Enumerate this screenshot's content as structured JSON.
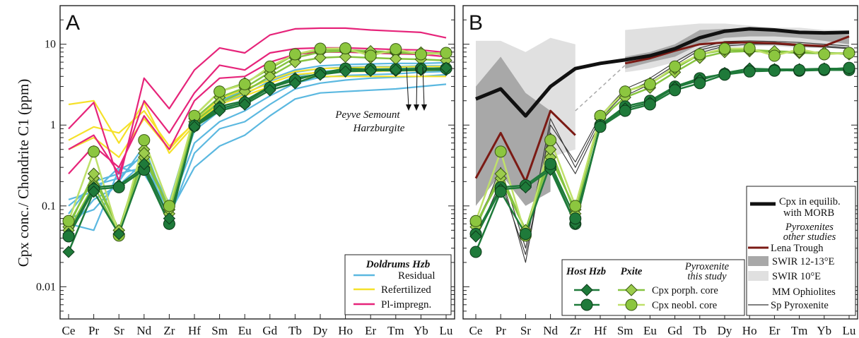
{
  "colors": {
    "residual": "#5bb8e0",
    "refertilized": "#f5e12a",
    "plimpregn": "#e6247a",
    "morb": "#111111",
    "lena": "#7b1a14",
    "swir1213": "#a8a8a8",
    "swir10": "#e0e0e0",
    "mm": "#333333",
    "host": "#1f7a3a",
    "pxite": "#86c440",
    "pxite_light": "#bfe06a"
  },
  "shared": {
    "ylabel": "Cpx conc./ Chondrite C1 (ppm)",
    "categories": [
      "Ce",
      "Pr",
      "Sr",
      "Nd",
      "Zr",
      "Hf",
      "Sm",
      "Eu",
      "Gd",
      "Tb",
      "Dy",
      "Ho",
      "Er",
      "Tm",
      "Yb",
      "Lu"
    ],
    "ytick_labels": [
      "0.01",
      "0.1",
      "1",
      "10"
    ]
  },
  "panelA": {
    "letter": "A",
    "annotation_line1": "Peyve Semount",
    "annotation_line2": "Harzburgite",
    "legend": {
      "title": "Doldrums Hzb",
      "items": [
        "Residual",
        "Refertilized",
        "Pl-impregn."
      ]
    }
  },
  "panelB": {
    "letter": "B",
    "legend_morb_line1": "Cpx in equilib.",
    "legend_morb_line2": "with MORB",
    "legend_other_title_line1": "Pyroxenites",
    "legend_other_title_line2": "other studies",
    "legend_lena": "Lena Trough",
    "legend_swir1213": "SWIR 12-13°E",
    "legend_swir10": "SWIR 10°E",
    "legend_mm_line1": "MM Ophiolites",
    "legend_mm_line2": "Sp Pyroxenite",
    "legend2": {
      "host_title": "Host Hzb",
      "pxite_title": "Pxite",
      "study_title_line1": "Pyroxenite",
      "study_title_line2": "this study",
      "porph_label": "Cpx porph. core",
      "neobl_label": "Cpx neobl. core"
    }
  },
  "chart_data": [
    {
      "type": "line",
      "panel": "A",
      "ylabel": "Cpx conc./ Chondrite C1 (ppm)",
      "yscale": "log",
      "ylim": [
        0.004,
        30
      ],
      "categories": [
        "Ce",
        "Pr",
        "Sr",
        "Nd",
        "Zr",
        "Hf",
        "Sm",
        "Eu",
        "Gd",
        "Tb",
        "Dy",
        "Ho",
        "Er",
        "Tm",
        "Yb",
        "Lu"
      ],
      "series": [
        {
          "group": "Residual",
          "values": [
            0.12,
            0.15,
            0.3,
            0.25,
            0.08,
            0.3,
            0.55,
            0.75,
            1.3,
            2.1,
            2.5,
            2.6,
            2.7,
            2.8,
            3.0,
            3.2
          ]
        },
        {
          "group": "Residual",
          "values": [
            0.06,
            0.05,
            0.28,
            0.4,
            0.07,
            0.45,
            0.9,
            1.1,
            1.8,
            2.8,
            3.3,
            3.6,
            3.8,
            3.9,
            4.0,
            4.2
          ]
        },
        {
          "group": "Residual",
          "values": [
            0.08,
            0.2,
            0.25,
            0.3,
            0.09,
            0.6,
            1.1,
            1.5,
            2.3,
            3.3,
            3.9,
            4.1,
            4.2,
            4.3,
            4.5,
            4.6
          ]
        },
        {
          "group": "Residual",
          "values": [
            0.1,
            0.18,
            0.22,
            0.45,
            0.1,
            0.85,
            1.5,
            2.0,
            2.9,
            4.0,
            4.6,
            4.8,
            4.9,
            5.0,
            5.1,
            5.1
          ]
        },
        {
          "group": "Residual",
          "values": [
            0.07,
            0.09,
            0.2,
            0.55,
            0.08,
            1.0,
            1.8,
            2.4,
            3.5,
            4.5,
            5.0,
            5.2,
            5.3,
            5.3,
            5.4,
            5.4
          ]
        },
        {
          "group": "Residual",
          "values": [
            0.05,
            0.12,
            0.18,
            0.35,
            0.11,
            1.2,
            2.0,
            2.7,
            3.7,
            4.8,
            5.4,
            5.6,
            5.7,
            5.8,
            5.8,
            5.9
          ]
        },
        {
          "group": "Refertilized",
          "values": [
            1.8,
            2.0,
            0.6,
            1.9,
            0.45,
            1.0,
            1.8,
            2.3,
            3.0,
            3.8,
            4.0,
            4.0,
            4.0,
            4.0,
            4.0,
            4.0
          ]
        },
        {
          "group": "Refertilized",
          "values": [
            0.65,
            0.95,
            0.8,
            1.5,
            0.55,
            1.05,
            1.9,
            2.5,
            3.3,
            4.2,
            4.5,
            4.6,
            4.6,
            4.7,
            4.7,
            4.8
          ]
        },
        {
          "group": "Refertilized",
          "values": [
            0.5,
            0.7,
            0.4,
            1.2,
            0.5,
            1.1,
            2.1,
            2.8,
            3.6,
            4.6,
            5.0,
            5.1,
            5.2,
            5.2,
            5.3,
            5.3
          ]
        },
        {
          "group": "Pl-impregn.",
          "values": [
            0.9,
            1.9,
            0.2,
            3.8,
            1.6,
            4.8,
            9.0,
            7.8,
            13.0,
            15.5,
            15.8,
            15.8,
            15.0,
            14.5,
            14.0,
            12.0
          ]
        },
        {
          "group": "Pl-impregn.",
          "values": [
            0.5,
            0.75,
            0.25,
            2.0,
            0.8,
            2.5,
            5.5,
            4.8,
            7.8,
            8.8,
            9.0,
            9.0,
            8.8,
            8.6,
            8.5,
            7.9
          ]
        },
        {
          "group": "Pl-impregn.",
          "values": [
            0.25,
            0.55,
            0.3,
            1.3,
            0.5,
            2.0,
            3.8,
            4.0,
            6.0,
            7.5,
            8.0,
            8.0,
            7.8,
            7.6,
            7.5,
            7.0
          ]
        },
        {
          "group": "Pxite porph.",
          "values": [
            0.06,
            0.22,
            0.05,
            0.4,
            0.09,
            1.2,
            2.2,
            2.9,
            4.5,
            6.8,
            8.0,
            8.2,
            8.0,
            7.8,
            7.7,
            7.8
          ]
        },
        {
          "group": "Pxite porph.",
          "values": [
            0.055,
            0.25,
            0.05,
            0.5,
            0.08,
            1.3,
            2.6,
            3.3,
            5.0,
            7.5,
            8.5,
            8.5,
            8.2,
            8.0,
            7.9,
            7.5
          ]
        },
        {
          "group": "Pxite porph.",
          "values": [
            0.05,
            0.18,
            0.045,
            0.45,
            0.09,
            1.1,
            1.9,
            2.6,
            4.0,
            6.0,
            6.8,
            7.0,
            6.8,
            6.6,
            6.5,
            6.3
          ]
        },
        {
          "group": "Pxite neobl.",
          "values": [
            0.065,
            0.47,
            0.043,
            0.65,
            0.1,
            1.3,
            2.6,
            3.2,
            5.3,
            7.5,
            8.8,
            8.9,
            7.2,
            8.7,
            7.5,
            7.8
          ]
        },
        {
          "group": "Host Hzb",
          "values": [
            0.045,
            0.17,
            0.18,
            0.3,
            0.06,
            1.0,
            1.7,
            2.0,
            3.0,
            3.8,
            4.3,
            4.7,
            4.8,
            4.7,
            4.8,
            4.8
          ]
        },
        {
          "group": "Host Hzb",
          "values": [
            0.042,
            0.16,
            0.17,
            0.28,
            0.06,
            0.98,
            1.6,
            1.9,
            2.9,
            3.6,
            4.4,
            5.0,
            4.9,
            4.9,
            5.0,
            5.0
          ]
        },
        {
          "group": "Host Hzb",
          "values": [
            0.027,
            0.15,
            0.045,
            0.33,
            0.07,
            0.95,
            1.5,
            1.8,
            2.7,
            3.3,
            4.2,
            4.6,
            4.7,
            4.8,
            4.9,
            5.1
          ]
        }
      ]
    },
    {
      "type": "line",
      "panel": "B",
      "ylabel": "Cpx conc./ Chondrite C1 (ppm)",
      "yscale": "log",
      "ylim": [
        0.004,
        30
      ],
      "categories": [
        "Ce",
        "Pr",
        "Sr",
        "Nd",
        "Zr",
        "Hf",
        "Sm",
        "Eu",
        "Gd",
        "Tb",
        "Dy",
        "Ho",
        "Er",
        "Tm",
        "Yb",
        "Lu"
      ],
      "series": [
        {
          "group": "Cpx in equilib. with MORB",
          "values": [
            2.1,
            2.8,
            1.3,
            3.0,
            5.0,
            5.8,
            6.4,
            7.2,
            8.8,
            12.0,
            14.5,
            15.5,
            15.0,
            14.0,
            13.8,
            14.0
          ]
        },
        {
          "group": "Lena Trough",
          "values": [
            0.22,
            0.8,
            0.2,
            1.5,
            0.75,
            null,
            null,
            null,
            null,
            null,
            null,
            null,
            null,
            null,
            null,
            null
          ]
        },
        {
          "group": "Lena Trough",
          "values": [
            null,
            null,
            null,
            null,
            null,
            null,
            5.8,
            6.7,
            8.3,
            10.0,
            10.5,
            10.5,
            10.3,
            9.8,
            9.5,
            12.5
          ]
        },
        {
          "group": "MM Ophiolites Sp Pyroxenite",
          "values": [
            0.05,
            0.3,
            0.03,
            1.2,
            0.3,
            1.2,
            2.5,
            3.5,
            5.5,
            8.5,
            10.0,
            10.5,
            10.5,
            10.0,
            9.5,
            9.0
          ]
        },
        {
          "group": "MM Ophiolites Sp Pyroxenite",
          "values": [
            0.06,
            0.25,
            0.02,
            1.0,
            0.35,
            1.3,
            2.8,
            3.8,
            6.0,
            9.0,
            10.8,
            11.0,
            10.8,
            10.5,
            10.0,
            9.5
          ]
        },
        {
          "group": "MM Ophiolites Sp Pyroxenite",
          "values": [
            0.04,
            0.2,
            0.025,
            0.8,
            0.25,
            1.1,
            2.3,
            3.2,
            5.0,
            7.8,
            9.5,
            10.0,
            10.0,
            9.5,
            9.2,
            8.8
          ]
        },
        {
          "group": "Pxite porph.",
          "values": [
            0.06,
            0.22,
            0.05,
            0.4,
            0.09,
            1.2,
            2.2,
            2.9,
            4.5,
            6.8,
            8.0,
            8.2,
            8.0,
            7.8,
            7.7,
            7.8
          ]
        },
        {
          "group": "Pxite porph.",
          "values": [
            0.055,
            0.25,
            0.05,
            0.5,
            0.08,
            1.3,
            2.6,
            3.3,
            5.0,
            7.5,
            8.5,
            8.5,
            8.2,
            8.0,
            7.9,
            7.5
          ]
        },
        {
          "group": "Pxite neobl.",
          "values": [
            0.065,
            0.47,
            0.043,
            0.65,
            0.1,
            1.3,
            2.6,
            3.2,
            5.3,
            7.5,
            8.8,
            8.9,
            7.2,
            8.7,
            7.5,
            7.8
          ]
        },
        {
          "group": "Host Hzb",
          "values": [
            0.045,
            0.17,
            0.18,
            0.3,
            0.06,
            1.0,
            1.7,
            2.0,
            3.0,
            3.8,
            4.3,
            4.7,
            4.8,
            4.7,
            4.8,
            4.8
          ]
        },
        {
          "group": "Host Hzb",
          "values": [
            0.042,
            0.16,
            0.17,
            0.28,
            0.06,
            0.98,
            1.6,
            1.9,
            2.9,
            3.6,
            4.4,
            5.0,
            4.9,
            4.9,
            5.0,
            5.0
          ]
        },
        {
          "group": "Host Hzb",
          "values": [
            0.027,
            0.15,
            0.045,
            0.33,
            0.07,
            0.95,
            1.5,
            1.8,
            2.7,
            3.3,
            4.2,
            4.6,
            4.7,
            4.8,
            4.9,
            5.1
          ]
        }
      ],
      "bands": [
        {
          "group": "SWIR 10°E",
          "lower": [
            0.1,
            0.3,
            0.2,
            0.4,
            0.5,
            null,
            null,
            null,
            null,
            null,
            null,
            null,
            null,
            null,
            null,
            null
          ],
          "upper": [
            11,
            11,
            8,
            12,
            10,
            null,
            null,
            null,
            null,
            null,
            null,
            null,
            null,
            null,
            null,
            null
          ]
        },
        {
          "group": "SWIR 10°E",
          "lower": [
            null,
            null,
            null,
            null,
            null,
            null,
            4.5,
            5.0,
            6.0,
            8.0,
            9.0,
            9.5,
            9.5,
            9.0,
            9.0,
            9.0
          ],
          "upper": [
            null,
            null,
            null,
            null,
            null,
            null,
            15,
            16,
            17,
            18,
            18,
            17,
            16,
            16,
            15,
            15
          ]
        },
        {
          "group": "SWIR 12-13°E",
          "lower": [
            0.1,
            0.25,
            0.1,
            0.15,
            null,
            null,
            null,
            null,
            null,
            null,
            null,
            null,
            null,
            null,
            null,
            null
          ],
          "upper": [
            3.0,
            7.0,
            2.5,
            1.5,
            null,
            null,
            null,
            null,
            null,
            null,
            null,
            null,
            null,
            null,
            null,
            null
          ]
        },
        {
          "group": "SWIR 12-13°E",
          "lower": [
            null,
            null,
            null,
            null,
            null,
            null,
            5.0,
            6.0,
            7.0,
            10.0,
            12.0,
            12.5,
            12.5,
            12.0,
            11.0,
            10.0
          ],
          "upper": [
            null,
            null,
            null,
            null,
            null,
            null,
            7.0,
            8.0,
            10.0,
            15.0,
            15.5,
            15.0,
            14.5,
            14.0,
            13.5,
            13.0
          ]
        }
      ]
    }
  ]
}
